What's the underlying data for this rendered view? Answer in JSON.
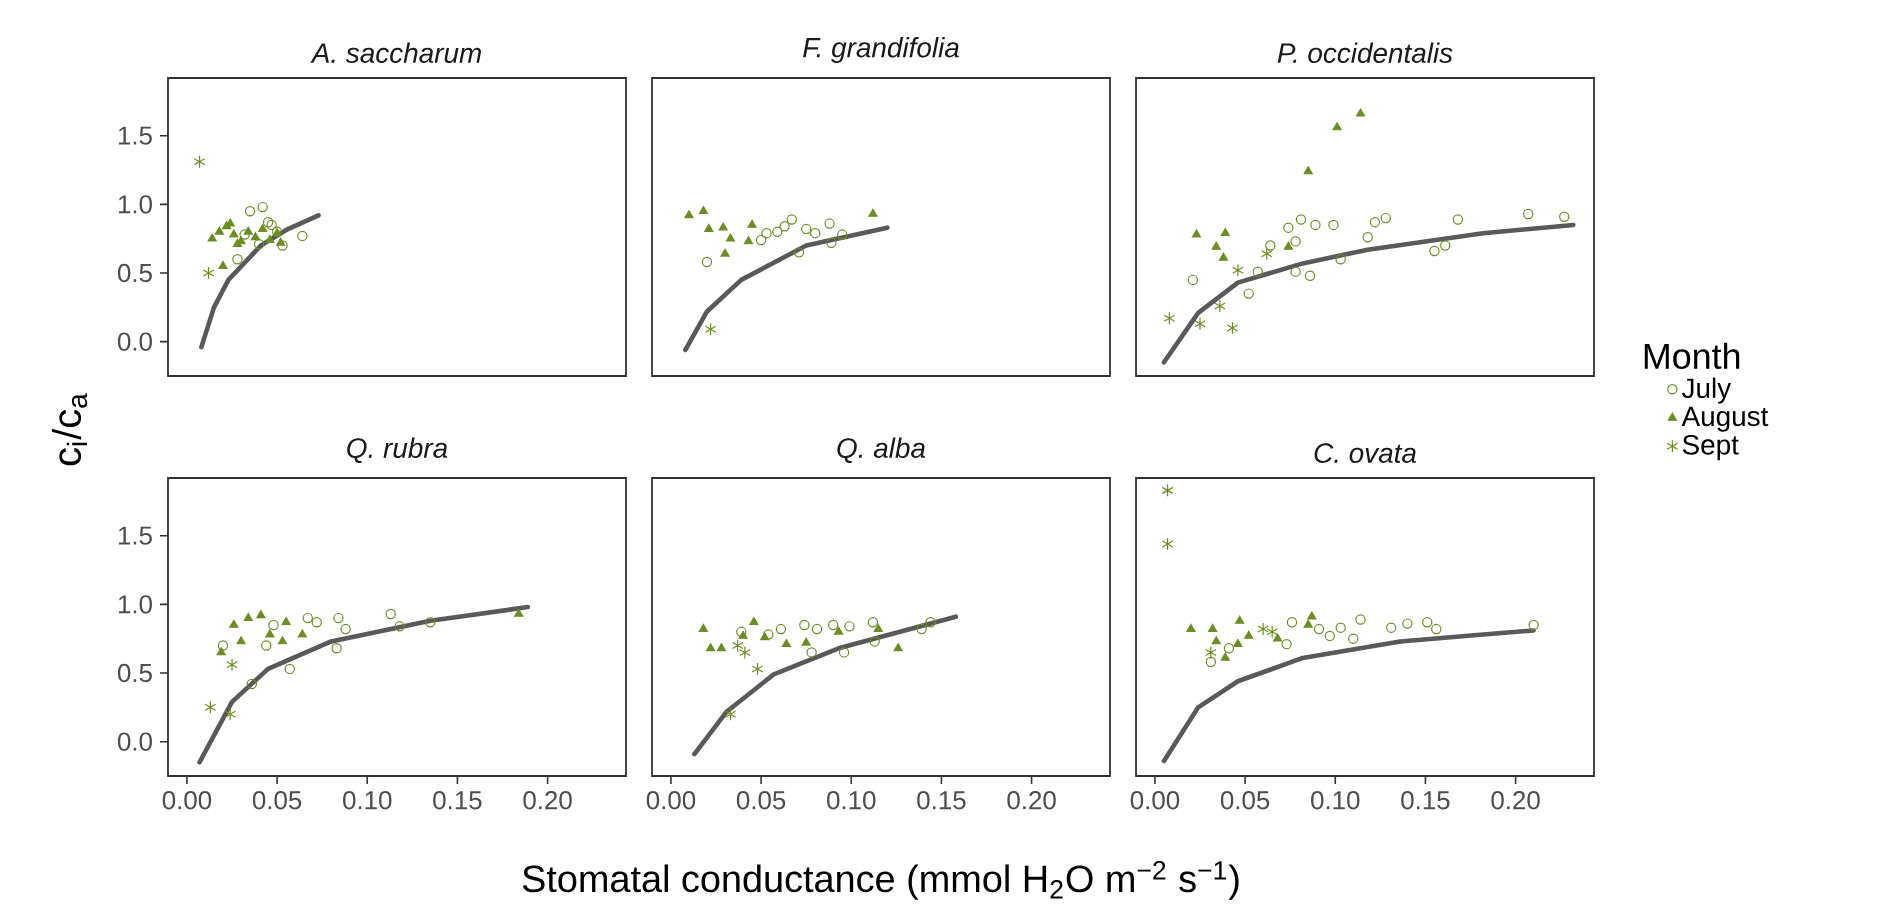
{
  "chart_data": [
    {
      "type": "scatter",
      "title": "A. saccharum",
      "ylabel": "c$_{i}$/c$_{a}$",
      "xlim": [
        -0.0105,
        0.2435
      ],
      "ylim": [
        -0.25,
        1.92
      ],
      "tick_labels": "y",
      "yticks": [
        {
          "value": 0,
          "label": "0.0"
        },
        {
          "value": 0.5,
          "label": "0.5"
        },
        {
          "value": 1,
          "label": "1.0"
        },
        {
          "value": 1.5,
          "label": "1.5"
        }
      ],
      "series": [
        {
          "color": "#6b8e23",
          "marker": "circle",
          "x": [
            0.035,
            0.042,
            0.045,
            0.047,
            0.064,
            0.053,
            0.028,
            0.04,
            0.05,
            0.032
          ],
          "values": [
            0.95,
            0.98,
            0.87,
            0.85,
            0.77,
            0.7,
            0.6,
            0.71,
            0.8,
            0.78
          ]
        },
        {
          "color": "#6b8e23",
          "marker": "triangle",
          "x": [
            0.014,
            0.018,
            0.022,
            0.026,
            0.03,
            0.034,
            0.038,
            0.042,
            0.046,
            0.05,
            0.052,
            0.02,
            0.024,
            0.028
          ],
          "values": [
            0.75,
            0.8,
            0.84,
            0.78,
            0.73,
            0.8,
            0.76,
            0.82,
            0.74,
            0.79,
            0.72,
            0.55,
            0.86,
            0.71
          ]
        },
        {
          "color": "#6b8e23",
          "marker": "cross",
          "x": [
            0.007,
            0.012
          ],
          "values": [
            1.31,
            0.5
          ]
        },
        {
          "type": "line",
          "color": "#595959",
          "marker": "none",
          "x": [
            0.008,
            0.015,
            0.023,
            0.041,
            0.056,
            0.073
          ],
          "values": [
            -0.04,
            0.25,
            0.45,
            0.7,
            0.82,
            0.92
          ]
        }
      ]
    },
    {
      "type": "scatter",
      "title": "F. grandifolia",
      "xlim": [
        -0.0105,
        0.2435
      ],
      "ylim": [
        -0.25,
        1.92
      ],
      "tick_labels": false,
      "series": [
        {
          "color": "#6b8e23",
          "marker": "circle",
          "x": [
            0.02,
            0.053,
            0.067,
            0.071,
            0.088,
            0.089,
            0.059,
            0.08,
            0.05,
            0.063,
            0.075,
            0.095
          ],
          "values": [
            0.58,
            0.79,
            0.89,
            0.65,
            0.86,
            0.72,
            0.8,
            0.79,
            0.74,
            0.84,
            0.82,
            0.78
          ]
        },
        {
          "color": "#6b8e23",
          "marker": "triangle",
          "x": [
            0.01,
            0.018,
            0.021,
            0.029,
            0.03,
            0.045,
            0.043,
            0.033,
            0.112
          ],
          "values": [
            0.92,
            0.95,
            0.82,
            0.83,
            0.64,
            0.85,
            0.73,
            0.75,
            0.93
          ]
        },
        {
          "color": "#6b8e23",
          "marker": "cross",
          "x": [
            0.022
          ],
          "values": [
            0.09
          ]
        },
        {
          "type": "line",
          "color": "#595959",
          "marker": "none",
          "x": [
            0.008,
            0.02,
            0.039,
            0.075,
            0.12
          ],
          "values": [
            -0.06,
            0.22,
            0.45,
            0.7,
            0.83
          ]
        }
      ]
    },
    {
      "type": "scatter",
      "title": "P. occidentalis",
      "xlim": [
        -0.0105,
        0.2435
      ],
      "ylim": [
        -0.25,
        1.92
      ],
      "tick_labels": false,
      "legend": "right",
      "legend_title": "Month",
      "series": [
        {
          "name": "July",
          "color": "#6b8e23",
          "marker": "circle",
          "x": [
            0.021,
            0.052,
            0.064,
            0.074,
            0.081,
            0.089,
            0.099,
            0.078,
            0.086,
            0.103,
            0.118,
            0.122,
            0.128,
            0.155,
            0.161,
            0.168,
            0.078,
            0.057,
            0.207,
            0.227
          ],
          "values": [
            0.45,
            0.35,
            0.7,
            0.83,
            0.89,
            0.85,
            0.85,
            0.73,
            0.48,
            0.6,
            0.76,
            0.87,
            0.9,
            0.66,
            0.7,
            0.89,
            0.51,
            0.51,
            0.93,
            0.91
          ]
        },
        {
          "name": "August",
          "color": "#6b8e23",
          "marker": "triangle",
          "x": [
            0.023,
            0.039,
            0.034,
            0.038,
            0.085,
            0.101,
            0.114,
            0.074
          ],
          "values": [
            0.78,
            0.79,
            0.69,
            0.61,
            1.24,
            1.56,
            1.66,
            0.69
          ]
        },
        {
          "name": "Sept",
          "color": "#6b8e23",
          "marker": "cross",
          "x": [
            0.008,
            0.025,
            0.036,
            0.043,
            0.046,
            0.062
          ],
          "values": [
            0.17,
            0.13,
            0.26,
            0.1,
            0.52,
            0.64
          ]
        },
        {
          "type": "line",
          "color": "#595959",
          "marker": "none",
          "x": [
            0.005,
            0.024,
            0.046,
            0.082,
            0.118,
            0.182,
            0.232
          ],
          "values": [
            -0.15,
            0.21,
            0.43,
            0.57,
            0.67,
            0.79,
            0.85
          ]
        }
      ]
    },
    {
      "type": "scatter",
      "title": "Q. rubra",
      "xlim": [
        -0.0105,
        0.2435
      ],
      "ylim": [
        -0.25,
        1.92
      ],
      "xticks": [
        {
          "value": 0,
          "label": "0.00"
        },
        {
          "value": 0.05,
          "label": "0.05"
        },
        {
          "value": 0.1,
          "label": "0.10"
        },
        {
          "value": 0.15,
          "label": "0.15"
        },
        {
          "value": 0.2,
          "label": "0.20"
        }
      ],
      "yticks": [
        {
          "value": 0,
          "label": "0.0"
        },
        {
          "value": 0.5,
          "label": "0.5"
        },
        {
          "value": 1,
          "label": "1.0"
        },
        {
          "value": 1.5,
          "label": "1.5"
        }
      ],
      "series": [
        {
          "color": "#6b8e23",
          "marker": "circle",
          "x": [
            0.036,
            0.067,
            0.072,
            0.084,
            0.088,
            0.083,
            0.057,
            0.048,
            0.113,
            0.118,
            0.135,
            0.044,
            0.02
          ],
          "values": [
            0.42,
            0.9,
            0.87,
            0.9,
            0.82,
            0.68,
            0.53,
            0.85,
            0.93,
            0.84,
            0.87,
            0.7,
            0.7
          ]
        },
        {
          "color": "#6b8e23",
          "marker": "triangle",
          "x": [
            0.019,
            0.026,
            0.034,
            0.041,
            0.046,
            0.053,
            0.064,
            0.055,
            0.03,
            0.184
          ],
          "values": [
            0.65,
            0.85,
            0.9,
            0.92,
            0.78,
            0.73,
            0.78,
            0.87,
            0.73,
            0.93
          ]
        },
        {
          "color": "#6b8e23",
          "marker": "cross",
          "x": [
            0.013,
            0.024,
            0.025
          ],
          "values": [
            0.25,
            0.2,
            0.56
          ]
        },
        {
          "type": "line",
          "color": "#595959",
          "marker": "none",
          "x": [
            0.007,
            0.025,
            0.045,
            0.08,
            0.135,
            0.189
          ],
          "values": [
            -0.15,
            0.29,
            0.53,
            0.73,
            0.88,
            0.98
          ]
        }
      ]
    },
    {
      "type": "scatter",
      "title": "Q. alba",
      "xlabel": "Stomatal conductance  (mmol H$_{2}$O m$^{−2}$ s$^{−1}$)",
      "xlim": [
        -0.0105,
        0.2435
      ],
      "ylim": [
        -0.25,
        1.92
      ],
      "tick_labels": "x",
      "xticks": [
        {
          "value": 0,
          "label": "0.00"
        },
        {
          "value": 0.05,
          "label": "0.05"
        },
        {
          "value": 0.1,
          "label": "0.10"
        },
        {
          "value": 0.15,
          "label": "0.15"
        },
        {
          "value": 0.2,
          "label": "0.20"
        }
      ],
      "series": [
        {
          "color": "#6b8e23",
          "marker": "circle",
          "x": [
            0.039,
            0.061,
            0.074,
            0.081,
            0.09,
            0.099,
            0.112,
            0.113,
            0.096,
            0.078,
            0.139,
            0.144,
            0.054
          ],
          "values": [
            0.8,
            0.82,
            0.85,
            0.82,
            0.85,
            0.84,
            0.87,
            0.73,
            0.65,
            0.65,
            0.82,
            0.87,
            0.78
          ]
        },
        {
          "color": "#6b8e23",
          "marker": "triangle",
          "x": [
            0.018,
            0.022,
            0.028,
            0.046,
            0.052,
            0.064,
            0.075,
            0.093,
            0.115,
            0.126,
            0.04
          ],
          "values": [
            0.82,
            0.68,
            0.68,
            0.87,
            0.76,
            0.71,
            0.72,
            0.8,
            0.82,
            0.68,
            0.77
          ]
        },
        {
          "color": "#6b8e23",
          "marker": "cross",
          "x": [
            0.033,
            0.048,
            0.041,
            0.037
          ],
          "values": [
            0.2,
            0.53,
            0.65,
            0.7
          ]
        },
        {
          "type": "line",
          "color": "#595959",
          "marker": "none",
          "x": [
            0.013,
            0.031,
            0.057,
            0.093,
            0.158
          ],
          "values": [
            -0.09,
            0.22,
            0.49,
            0.68,
            0.91
          ]
        }
      ]
    },
    {
      "type": "scatter",
      "title": "C. ovata",
      "xlim": [
        -0.0105,
        0.2435
      ],
      "ylim": [
        -0.25,
        1.92
      ],
      "tick_labels": "x",
      "xticks": [
        {
          "value": 0,
          "label": "0.00"
        },
        {
          "value": 0.05,
          "label": "0.05"
        },
        {
          "value": 0.1,
          "label": "0.10"
        },
        {
          "value": 0.15,
          "label": "0.15"
        },
        {
          "value": 0.2,
          "label": "0.20"
        }
      ],
      "series": [
        {
          "color": "#6b8e23",
          "marker": "circle",
          "x": [
            0.031,
            0.041,
            0.073,
            0.076,
            0.091,
            0.103,
            0.11,
            0.114,
            0.131,
            0.14,
            0.151,
            0.156,
            0.097,
            0.21
          ],
          "values": [
            0.58,
            0.68,
            0.71,
            0.87,
            0.82,
            0.83,
            0.75,
            0.89,
            0.83,
            0.86,
            0.87,
            0.82,
            0.77,
            0.85
          ]
        },
        {
          "color": "#6b8e23",
          "marker": "triangle",
          "x": [
            0.02,
            0.032,
            0.034,
            0.039,
            0.047,
            0.052,
            0.046,
            0.087,
            0.085,
            0.068
          ],
          "values": [
            0.82,
            0.82,
            0.73,
            0.61,
            0.88,
            0.77,
            0.71,
            0.91,
            0.85,
            0.75
          ]
        },
        {
          "color": "#6b8e23",
          "marker": "cross",
          "x": [
            0.007,
            0.007,
            0.031,
            0.06,
            0.065
          ],
          "values": [
            1.83,
            1.44,
            0.65,
            0.82,
            0.8
          ]
        },
        {
          "type": "line",
          "color": "#595959",
          "marker": "none",
          "x": [
            0.005,
            0.024,
            0.046,
            0.082,
            0.136,
            0.182,
            0.21
          ],
          "values": [
            -0.14,
            0.25,
            0.44,
            0.61,
            0.73,
            0.78,
            0.81
          ]
        }
      ]
    }
  ]
}
